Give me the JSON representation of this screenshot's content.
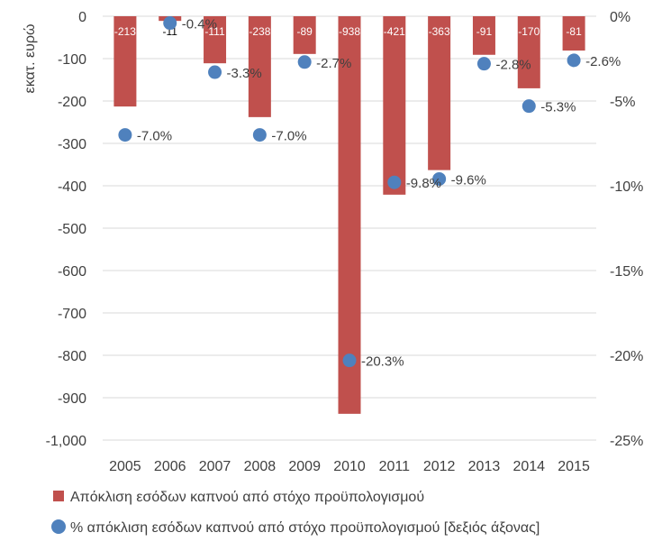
{
  "chart_data": {
    "type": "bar+scatter",
    "categories": [
      "2005",
      "2006",
      "2007",
      "2008",
      "2009",
      "2010",
      "2011",
      "2012",
      "2013",
      "2014",
      "2015"
    ],
    "series": [
      {
        "name": "Απόκλιση εσόδων καπνού από στόχο προϋπολογισμού",
        "type": "bar",
        "axis": "left",
        "values": [
          -213,
          -11,
          -111,
          -238,
          -89,
          -938,
          -421,
          -363,
          -91,
          -170,
          -81
        ],
        "labels": [
          "-213",
          "-11",
          "-111",
          "-238",
          "-89",
          "-938",
          "-421",
          "-363",
          "-91",
          "-170",
          "-81"
        ],
        "color": "#c0504d"
      },
      {
        "name": "% απόκλιση εσόδων καπνού από στόχο προϋπολογισμού [δεξιός άξονας]",
        "type": "scatter",
        "axis": "right",
        "values": [
          -7.0,
          -0.4,
          -3.3,
          -7.0,
          -2.7,
          -20.3,
          -9.8,
          -9.6,
          -2.8,
          -5.3,
          -2.6
        ],
        "labels": [
          "-7.0%",
          "-0.4%",
          "-3.3%",
          "-7.0%",
          "-2.7%",
          "-20.3%",
          "-9.8%",
          "-9.6%",
          "-2.8%",
          "-5.3%",
          "-2.6%"
        ],
        "color": "#4f81bd"
      }
    ],
    "ylabel": "εκατ. ευρώ",
    "ylim": [
      -1000,
      0
    ],
    "yticks": [
      0,
      -100,
      -200,
      -300,
      -400,
      -500,
      -600,
      -700,
      -800,
      -900,
      -1000
    ],
    "ytick_labels": [
      "0",
      "-100",
      "-200",
      "-300",
      "-400",
      "-500",
      "-600",
      "-700",
      "-800",
      "-900",
      "-1,000"
    ],
    "y2lim": [
      -25,
      0
    ],
    "y2ticks": [
      0,
      -5,
      -10,
      -15,
      -20,
      -25
    ],
    "y2tick_labels": [
      "0%",
      "-5%",
      "-10%",
      "-15%",
      "-20%",
      "-25%"
    ],
    "grid": true,
    "legend_position": "bottom"
  }
}
